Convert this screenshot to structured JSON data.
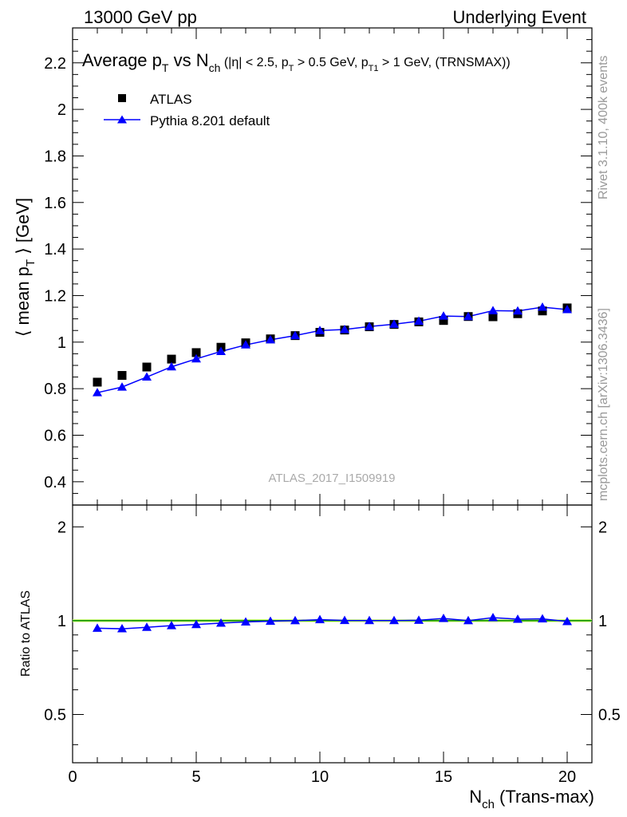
{
  "header": {
    "left": "13000 GeV pp",
    "right": "Underlying Event"
  },
  "side_labels": {
    "rivet": "Rivet 3.1.10,  400k events",
    "mcplots": "mcplots.cern.ch [arXiv:1306.3436]"
  },
  "colors": {
    "data": "#000000",
    "mc": "#0000ff",
    "band": "#ccff66",
    "ratio_ref": "#008800"
  },
  "chart_data": [
    {
      "type": "scatter",
      "title_main": "Average p",
      "title_main_sub": "T",
      "title_vs": " vs N",
      "title_vs_sub": "ch",
      "title_sel_1": " (|η| < 2.5, p",
      "title_sel_1_sub": "T",
      "title_sel_2": " > 0.5 GeV, p",
      "title_sel_2_sub": "T1",
      "title_sel_3": " > 1 GeV, (TRNSMAX))",
      "ylabel_1": "⟨ mean p",
      "ylabel_sub": "T",
      "ylabel_2": " ⟩ [GeV]",
      "watermark": "ATLAS_2017_I1509919",
      "xlim": [
        0,
        21
      ],
      "ylim": [
        0.3,
        2.35
      ],
      "yticks": [
        0.4,
        0.6,
        0.8,
        1,
        1.2,
        1.4,
        1.6,
        1.8,
        2,
        2.2
      ],
      "ytick_labels": [
        "0.4",
        "0.6",
        "0.8",
        "1",
        "1.2",
        "1.4",
        "1.6",
        "1.8",
        "2",
        "2.2"
      ],
      "legend_position": "top-left",
      "x": [
        1,
        2,
        3,
        4,
        5,
        6,
        7,
        8,
        9,
        10,
        11,
        12,
        13,
        14,
        15,
        16,
        17,
        18,
        19,
        20
      ],
      "series": [
        {
          "name": "ATLAS",
          "marker": "square",
          "values": [
            0.828,
            0.857,
            0.893,
            0.927,
            0.955,
            0.978,
            0.997,
            1.014,
            1.028,
            1.042,
            1.052,
            1.066,
            1.076,
            1.087,
            1.093,
            1.11,
            1.109,
            1.122,
            1.134,
            1.147
          ]
        },
        {
          "name": "Pythia 8.201 default",
          "marker": "triangle",
          "values": [
            0.783,
            0.807,
            0.85,
            0.894,
            0.928,
            0.96,
            0.988,
            1.01,
            1.028,
            1.05,
            1.054,
            1.067,
            1.077,
            1.09,
            1.112,
            1.11,
            1.135,
            1.134,
            1.15,
            1.14
          ]
        }
      ]
    },
    {
      "type": "line",
      "xlabel_main": "N",
      "xlabel_sub": "ch",
      "xlabel_rest": " (Trans-max)",
      "ylabel": "Ratio to ATLAS",
      "xlim": [
        0,
        21
      ],
      "ylim": [
        0.35,
        2.35
      ],
      "xticks": [
        0,
        5,
        10,
        15,
        20
      ],
      "xtick_labels": [
        "0",
        "5",
        "10",
        "15",
        "20"
      ],
      "yticks": [
        0.5,
        1,
        2
      ],
      "ytick_labels": [
        "0.5",
        "1",
        "2"
      ],
      "x": [
        1,
        2,
        3,
        4,
        5,
        6,
        7,
        8,
        9,
        10,
        11,
        12,
        13,
        14,
        15,
        16,
        17,
        18,
        19,
        20
      ],
      "series": [
        {
          "name": "Pythia 8.201 default",
          "values": [
            0.946,
            0.942,
            0.952,
            0.964,
            0.972,
            0.982,
            0.991,
            0.996,
            1.0,
            1.008,
            1.002,
            1.001,
            1.001,
            1.003,
            1.017,
            1.0,
            1.023,
            1.011,
            1.014,
            0.994
          ]
        }
      ]
    }
  ]
}
